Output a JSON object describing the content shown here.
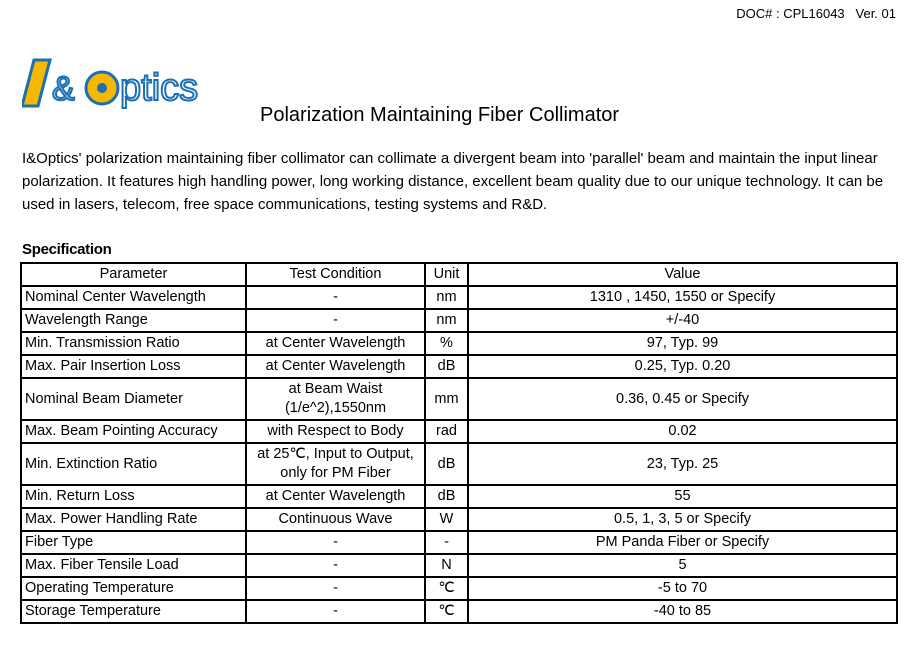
{
  "header": {
    "doc_number": "DOC# : CPL16043",
    "version": "Ver. 01"
  },
  "logo": {
    "text": "I&Optics",
    "colors": {
      "blue": "#1a6fb5",
      "yellow": "#f5b800"
    }
  },
  "title": "Polarization Maintaining Fiber Collimator",
  "intro": "I&Optics' polarization maintaining fiber collimator can collimate a divergent beam into 'parallel' beam and maintain the input linear polarization. It features high handling power, long working distance, excellent beam quality due to our unique technology. It can be used in lasers, telecom, free space communications, testing systems and R&D.",
  "spec": {
    "heading": "Specification",
    "columns": [
      "Parameter",
      "Test Condition",
      "Unit",
      "Value"
    ],
    "rows": [
      [
        "Nominal Center Wavelength",
        "-",
        "nm",
        "1310 , 1450, 1550 or Specify"
      ],
      [
        "Wavelength Range",
        "-",
        "nm",
        "+/-40"
      ],
      [
        "Min. Transmission Ratio",
        "at Center Wavelength",
        "%",
        "97, Typ. 99"
      ],
      [
        "Max. Pair Insertion Loss",
        "at Center Wavelength",
        "dB",
        "0.25, Typ. 0.20"
      ],
      [
        "Nominal Beam Diameter",
        "at Beam Waist\n(1/e^2),1550nm",
        "mm",
        "0.36, 0.45 or Specify"
      ],
      [
        "Max. Beam Pointing Accuracy",
        "with Respect to Body",
        "rad",
        "0.02"
      ],
      [
        "Min. Extinction Ratio",
        "at 25℃, Input to Output,\nonly for PM Fiber",
        "dB",
        "23, Typ. 25"
      ],
      [
        "Min. Return Loss",
        "at Center Wavelength",
        "dB",
        "55"
      ],
      [
        "Max. Power Handling Rate",
        "Continuous Wave",
        "W",
        "0.5, 1, 3, 5 or Specify"
      ],
      [
        "Fiber Type",
        "-",
        "-",
        "PM Panda Fiber or Specify"
      ],
      [
        "Max. Fiber Tensile Load",
        "-",
        "N",
        "5"
      ],
      [
        "Operating Temperature",
        "-",
        "℃",
        "-5 to 70"
      ],
      [
        "Storage Temperature",
        "-",
        "℃",
        "-40 to 85"
      ]
    ]
  }
}
